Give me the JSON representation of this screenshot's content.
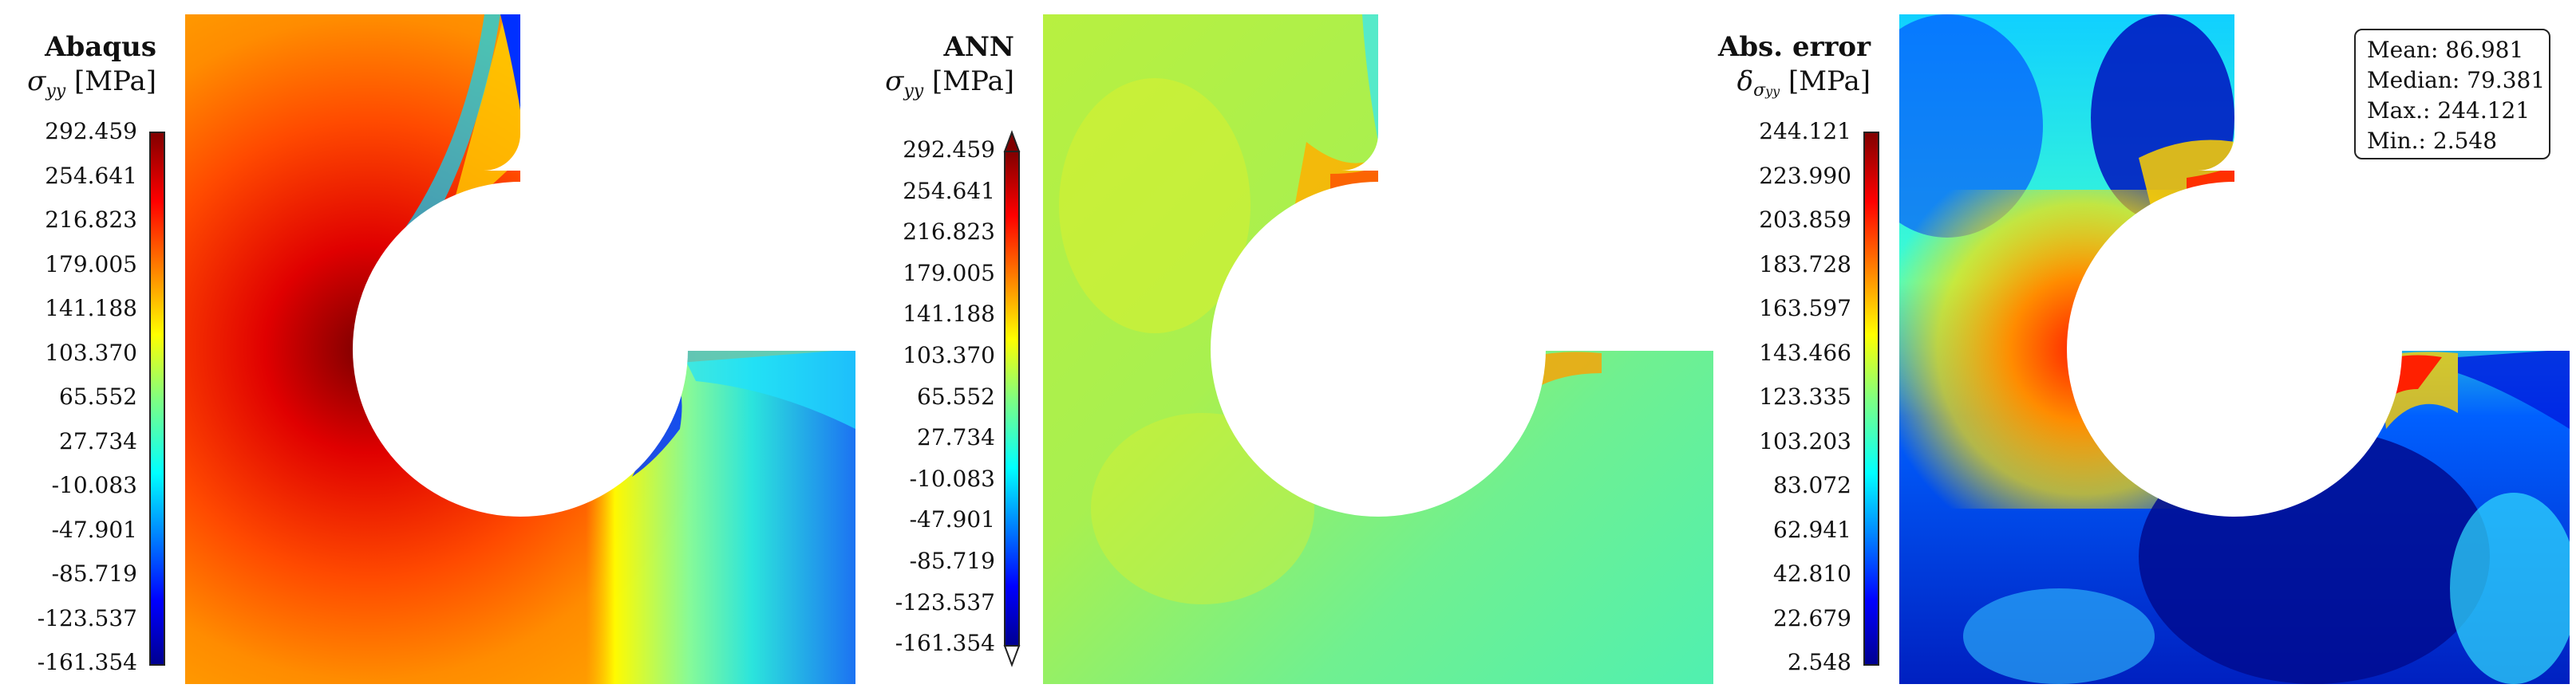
{
  "panels": [
    {
      "title": "Abaqus",
      "symbol_main": "σ",
      "symbol_sub": "yy",
      "unit": "[MPa]",
      "ticks": [
        "292.459",
        "254.641",
        "216.823",
        "179.005",
        "141.188",
        "103.370",
        "65.552",
        "27.734",
        "-10.083",
        "-47.901",
        "-85.719",
        "-123.537",
        "-161.354"
      ]
    },
    {
      "title": "ANN",
      "symbol_main": "σ",
      "symbol_sub": "yy",
      "unit": "[MPa]",
      "ticks": [
        "292.459",
        "254.641",
        "216.823",
        "179.005",
        "141.188",
        "103.370",
        "65.552",
        "27.734",
        "-10.083",
        "-47.901",
        "-85.719",
        "-123.537",
        "-161.354"
      ]
    },
    {
      "title": "Abs. error",
      "symbol_main": "δ",
      "symbol_sub": "σ",
      "symbol_subsub": "yy",
      "unit": "[MPa]",
      "ticks": [
        "244.121",
        "223.990",
        "203.859",
        "183.728",
        "163.597",
        "143.466",
        "123.335",
        "103.203",
        "83.072",
        "62.941",
        "42.810",
        "22.679",
        "2.548"
      ]
    }
  ],
  "stats": {
    "mean": "Mean: 86.981",
    "median": "Median: 79.381",
    "max": "Max.: 244.121",
    "min": "Min.: 2.548"
  },
  "chart_data": [
    {
      "type": "heatmap",
      "title": "Abaqus",
      "colorbar_label": "σyy [MPa]",
      "colormap": "jet",
      "range": [
        -161.354,
        292.459
      ]
    },
    {
      "type": "heatmap",
      "title": "ANN",
      "colorbar_label": "σyy [MPa]",
      "colormap": "jet",
      "range": [
        -161.354,
        292.459
      ],
      "colorbar_extend": "both"
    },
    {
      "type": "heatmap",
      "title": "Abs. error",
      "colorbar_label": "δσyy [MPa]",
      "colormap": "jet",
      "range": [
        2.548,
        244.121
      ],
      "stats": {
        "mean": 86.981,
        "median": 79.381,
        "max": 244.121,
        "min": 2.548
      }
    }
  ]
}
